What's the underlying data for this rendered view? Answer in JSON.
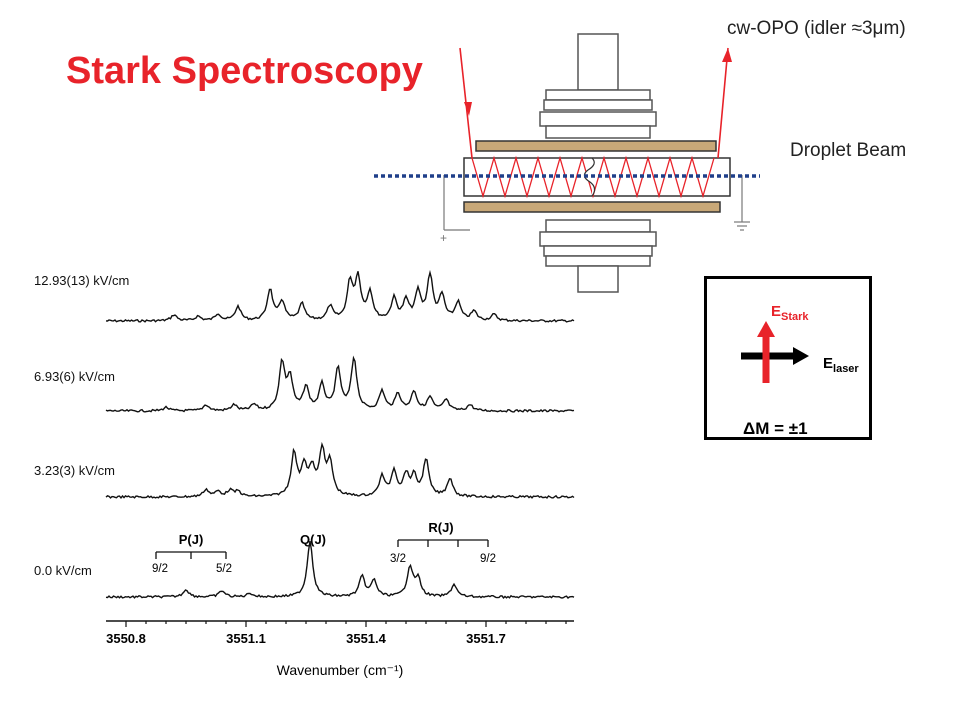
{
  "slide": {
    "title": "Stark Spectroscopy"
  },
  "apparatus": {
    "laser_label": "cw-OPO (idler ≈3μm)",
    "beam_label": "Droplet Beam",
    "plus_sign": "+",
    "colors": {
      "laser": "#e8232a",
      "beam": "#1f3f8a",
      "electrode": "#c8a878"
    }
  },
  "polarization": {
    "e_stark_main": "E",
    "e_stark_sub": "Stark",
    "e_laser_main": "E",
    "e_laser_sub": "laser",
    "delta_m": "ΔM = ±1",
    "colors": {
      "stark_arrow": "#e8232a",
      "laser_arrow": "#000000"
    }
  },
  "chart_data": {
    "type": "line",
    "xlabel": "Wavenumber (cm⁻¹)",
    "x_ticks": [
      "3550.8",
      "3551.1",
      "3551.4",
      "3551.7"
    ],
    "xlim": [
      3550.75,
      3551.92
    ],
    "series": [
      {
        "name": "12.93(13) kV/cm",
        "peaks": [
          [
            3550.92,
            0.12
          ],
          [
            3550.98,
            0.09
          ],
          [
            3551.03,
            0.14
          ],
          [
            3551.08,
            0.28
          ],
          [
            3551.16,
            0.62
          ],
          [
            3551.19,
            0.38
          ],
          [
            3551.24,
            0.33
          ],
          [
            3551.31,
            0.28
          ],
          [
            3551.36,
            0.74
          ],
          [
            3551.38,
            0.82
          ],
          [
            3551.41,
            0.55
          ],
          [
            3551.47,
            0.43
          ],
          [
            3551.5,
            0.38
          ],
          [
            3551.53,
            0.55
          ],
          [
            3551.56,
            0.88
          ],
          [
            3551.59,
            0.48
          ],
          [
            3551.63,
            0.36
          ],
          [
            3551.67,
            0.18
          ],
          [
            3551.72,
            0.12
          ]
        ]
      },
      {
        "name": "6.93(6) kV/cm",
        "peaks": [
          [
            3550.9,
            0.06
          ],
          [
            3551.0,
            0.1
          ],
          [
            3551.07,
            0.1
          ],
          [
            3551.12,
            0.1
          ],
          [
            3551.19,
            0.78
          ],
          [
            3551.21,
            0.52
          ],
          [
            3551.25,
            0.38
          ],
          [
            3551.29,
            0.42
          ],
          [
            3551.33,
            0.68
          ],
          [
            3551.37,
            0.86
          ],
          [
            3551.44,
            0.32
          ],
          [
            3551.48,
            0.28
          ],
          [
            3551.52,
            0.32
          ],
          [
            3551.56,
            0.22
          ],
          [
            3551.6,
            0.18
          ],
          [
            3551.66,
            0.1
          ]
        ]
      },
      {
        "name": "3.23(3) kV/cm",
        "peaks": [
          [
            3551.0,
            0.14
          ],
          [
            3551.03,
            0.1
          ],
          [
            3551.06,
            0.12
          ],
          [
            3551.08,
            0.1
          ],
          [
            3551.22,
            0.82
          ],
          [
            3551.245,
            0.55
          ],
          [
            3551.265,
            0.48
          ],
          [
            3551.29,
            0.85
          ],
          [
            3551.31,
            0.62
          ],
          [
            3551.44,
            0.38
          ],
          [
            3551.47,
            0.48
          ],
          [
            3551.5,
            0.4
          ],
          [
            3551.52,
            0.36
          ],
          [
            3551.55,
            0.7
          ],
          [
            3551.61,
            0.35
          ]
        ]
      },
      {
        "name": "0.0 kV/cm",
        "peaks": [
          [
            3550.95,
            0.12
          ],
          [
            3551.04,
            0.1
          ],
          [
            3551.11,
            0.06
          ],
          [
            3551.26,
            0.9
          ],
          [
            3551.39,
            0.32
          ],
          [
            3551.42,
            0.26
          ],
          [
            3551.51,
            0.48
          ],
          [
            3551.53,
            0.28
          ],
          [
            3551.62,
            0.2
          ]
        ]
      }
    ],
    "annotations": {
      "p_branch": {
        "label": "P(J)",
        "start": "9/2",
        "end": "5/2"
      },
      "q_branch": {
        "label": "Q(J)"
      },
      "r_branch": {
        "label": "R(J)",
        "start": "3/2",
        "end": "9/2"
      }
    }
  }
}
